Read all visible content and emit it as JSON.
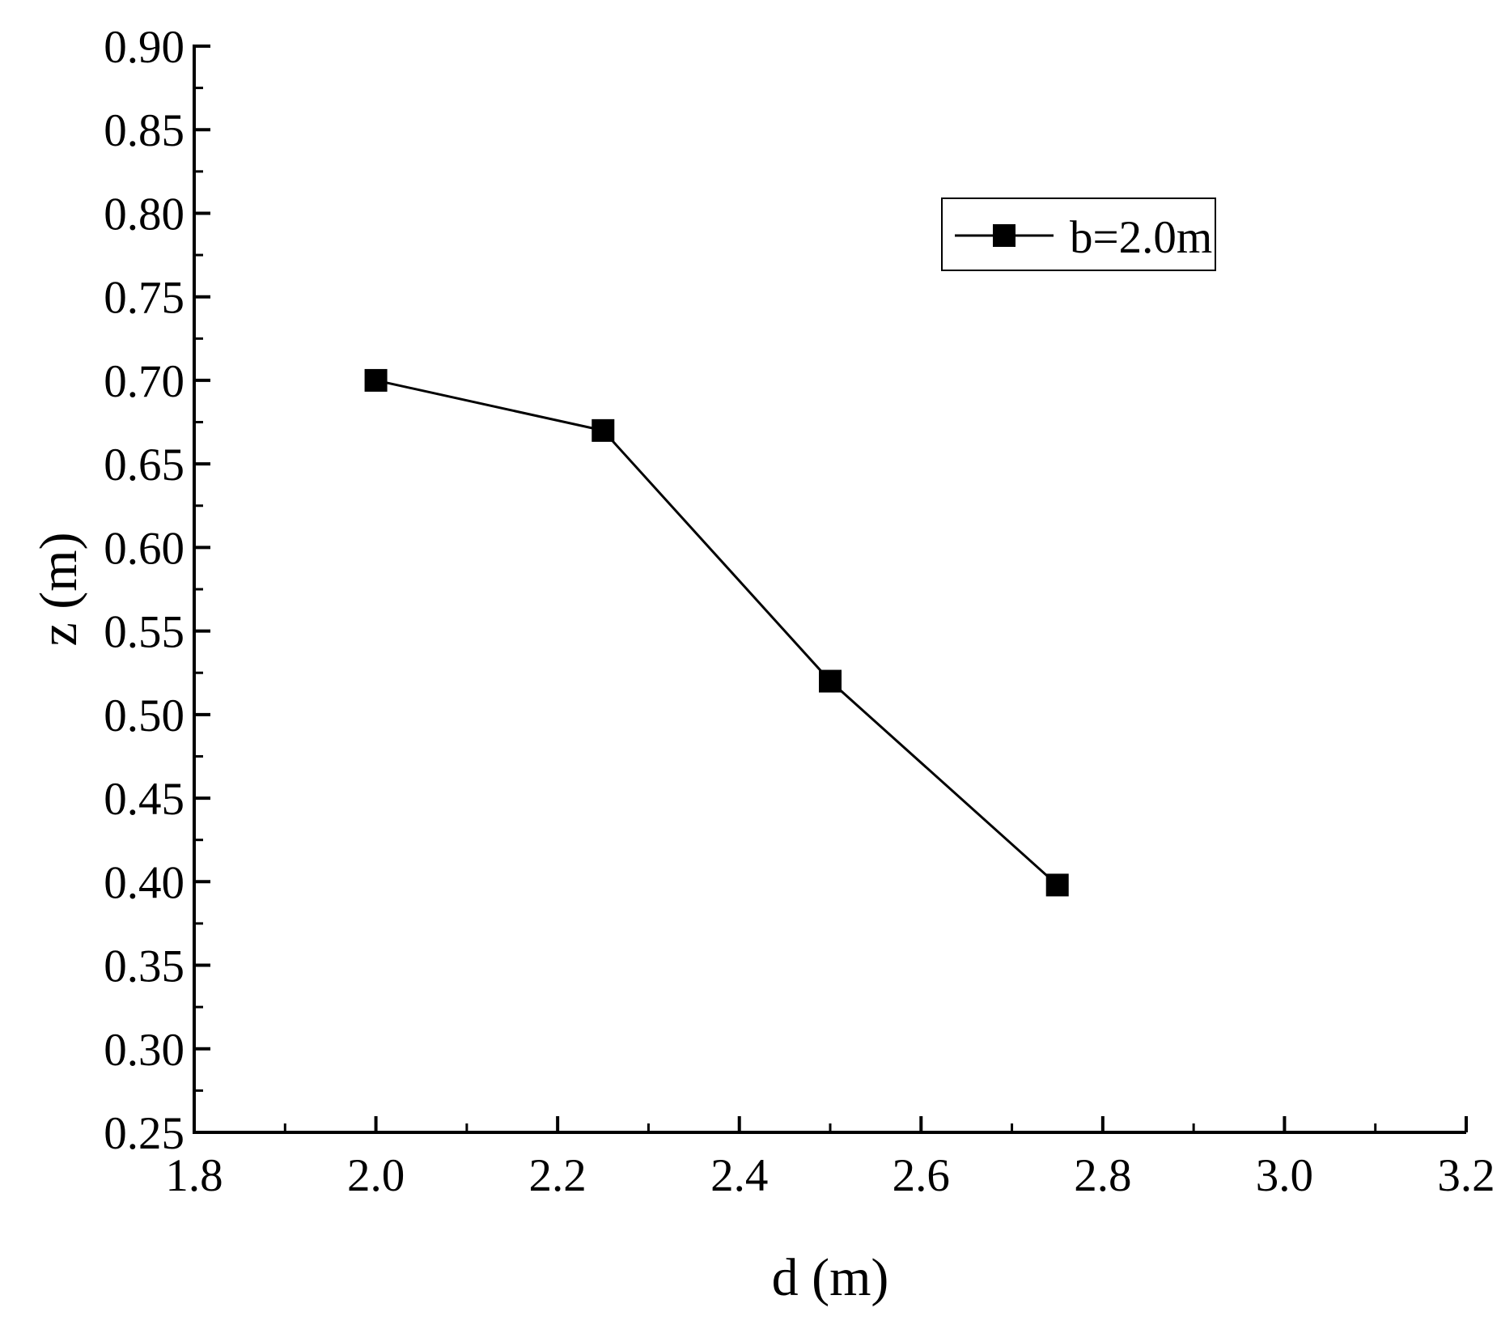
{
  "chart_data": {
    "type": "line",
    "title": "",
    "xlabel": "d (m)",
    "ylabel": "z (m)",
    "xlim": [
      1.8,
      3.2
    ],
    "ylim": [
      0.25,
      0.9
    ],
    "x_ticks": [
      "1.8",
      "2.0",
      "2.2",
      "2.4",
      "2.6",
      "2.8",
      "3.0",
      "3.2"
    ],
    "y_ticks": [
      "0.25",
      "0.30",
      "0.35",
      "0.40",
      "0.45",
      "0.50",
      "0.55",
      "0.60",
      "0.65",
      "0.70",
      "0.75",
      "0.80",
      "0.85",
      "0.90"
    ],
    "grid": false,
    "legend_position": "top-right",
    "series": [
      {
        "name": "b=2.0m",
        "color": "#000000",
        "marker": "square",
        "x": [
          2.0,
          2.25,
          2.5,
          2.75
        ],
        "y": [
          0.7,
          0.67,
          0.52,
          0.398
        ]
      }
    ]
  }
}
